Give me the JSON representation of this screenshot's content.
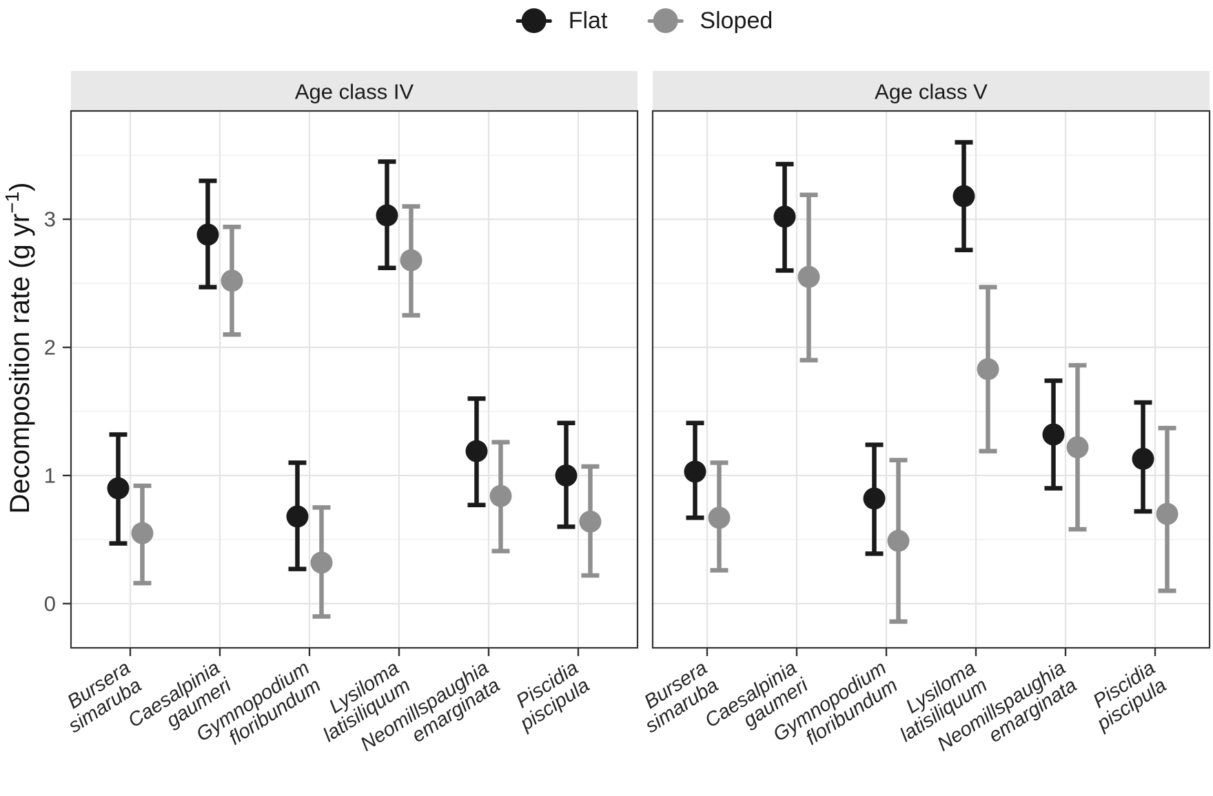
{
  "figure": {
    "legend": [
      {
        "label": "Flat",
        "color": "#1a1a1a"
      },
      {
        "label": "Sloped",
        "color": "#8f8f8f"
      }
    ]
  },
  "chart_data": {
    "type": "pointrange",
    "title": "",
    "xlabel": "",
    "ylabel": "Decomposition rate (g yr⁻¹)",
    "ylabel_parts": {
      "pre": "Decomposition rate (g yr",
      "sup": "−1",
      "post": ")"
    },
    "yticks": [
      0,
      1,
      2,
      3
    ],
    "ylim": [
      -0.35,
      3.85
    ],
    "grid": "horizontal major+minor light gray, vertical major at categories",
    "legend_position": "top-center",
    "x_tick_angle_deg": 33,
    "categories": [
      [
        "Bursera",
        "simaruba"
      ],
      [
        "Caesalpinia",
        "gaumeri"
      ],
      [
        "Gymnopodium",
        "floribundum"
      ],
      [
        "Lysiloma",
        "latisiliquum"
      ],
      [
        "Neomillspaughia",
        "emarginata"
      ],
      [
        "Piscidia",
        "piscipula"
      ]
    ],
    "panels": [
      {
        "title": "Age class IV",
        "series": [
          {
            "name": "Flat",
            "color": "#1a1a1a",
            "mean": [
              0.9,
              2.88,
              0.68,
              3.03,
              1.19,
              1.0
            ],
            "lower": [
              0.47,
              2.47,
              0.27,
              2.62,
              0.77,
              0.6
            ],
            "upper": [
              1.32,
              3.3,
              1.1,
              3.45,
              1.6,
              1.41
            ]
          },
          {
            "name": "Sloped",
            "color": "#8f8f8f",
            "mean": [
              0.55,
              2.52,
              0.32,
              2.68,
              0.84,
              0.64
            ],
            "lower": [
              0.16,
              2.1,
              -0.1,
              2.25,
              0.41,
              0.22
            ],
            "upper": [
              0.92,
              2.94,
              0.75,
              3.1,
              1.26,
              1.07
            ]
          }
        ]
      },
      {
        "title": "Age class V",
        "series": [
          {
            "name": "Flat",
            "color": "#1a1a1a",
            "mean": [
              1.03,
              3.02,
              0.82,
              3.18,
              1.32,
              1.13
            ],
            "lower": [
              0.67,
              2.6,
              0.39,
              2.76,
              0.9,
              0.72
            ],
            "upper": [
              1.41,
              3.43,
              1.24,
              3.6,
              1.74,
              1.57
            ]
          },
          {
            "name": "Sloped",
            "color": "#8f8f8f",
            "mean": [
              0.67,
              2.55,
              0.49,
              1.83,
              1.22,
              0.7
            ],
            "lower": [
              0.26,
              1.9,
              -0.14,
              1.19,
              0.58,
              0.1
            ],
            "upper": [
              1.1,
              3.19,
              1.12,
              2.47,
              1.86,
              1.37
            ]
          }
        ]
      }
    ],
    "colors": {
      "flat": "#1a1a1a",
      "sloped": "#8f8f8f",
      "strip_bg": "#e8e8e8",
      "panel_border": "#333333",
      "grid_major": "#e4e4e4",
      "grid_minor": "#f1f1f1",
      "axis_text": "#4d4d4d"
    }
  }
}
